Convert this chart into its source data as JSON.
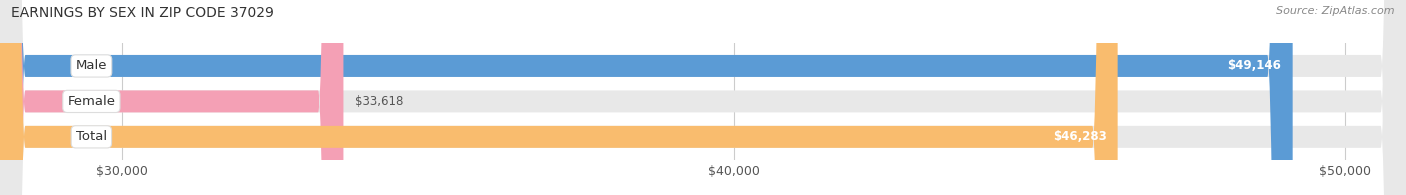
{
  "title": "EARNINGS BY SEX IN ZIP CODE 37029",
  "source": "Source: ZipAtlas.com",
  "categories": [
    "Male",
    "Female",
    "Total"
  ],
  "values": [
    49146,
    33618,
    46283
  ],
  "bar_colors": [
    "#5b9bd5",
    "#f4a0b5",
    "#f9bc6e"
  ],
  "track_color": "#e8e8e8",
  "xmin": 28000,
  "xmax": 51000,
  "xticks": [
    30000,
    40000,
    50000
  ],
  "xtick_labels": [
    "$30,000",
    "$40,000",
    "$50,000"
  ],
  "bar_height": 0.62,
  "title_fontsize": 10,
  "label_fontsize": 9.5,
  "value_fontsize": 8.5,
  "axis_fontsize": 9,
  "background_color": "#ffffff",
  "fig_width": 14.06,
  "fig_height": 1.95
}
